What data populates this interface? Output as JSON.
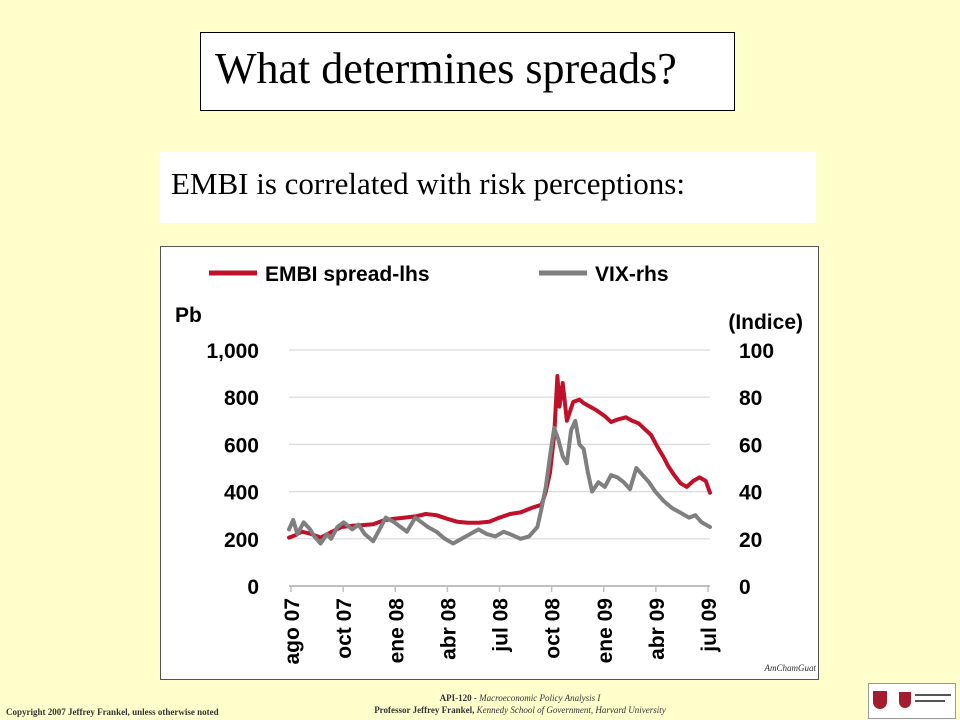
{
  "slide": {
    "title": "What determines spreads?",
    "subtitle": "EMBI is correlated with risk perceptions:",
    "footer_left": "Copyright 2007 Jeffrey Frankel, unless otherwise noted",
    "footer_line1": "API-120 - ",
    "footer_line1_italic": "Macroeconomic Policy Analysis I",
    "footer_line2": "Professor Jeffrey Frankel, ",
    "footer_line2_italic": "Kennedy School of Government, Harvard University",
    "logo_icon": "harvard-kennedy-school-logo"
  },
  "chart_data": {
    "type": "line",
    "legend": {
      "placement": "top",
      "entries": [
        "EMBI spread-lhs",
        "VIX-rhs"
      ]
    },
    "left_axis": {
      "unit": "Pb",
      "ticks": [
        "1,000",
        "800",
        "600",
        "400",
        "200",
        "0"
      ],
      "range": [
        0,
        1000
      ]
    },
    "right_axis": {
      "unit": "(Indice)",
      "ticks": [
        "100",
        "80",
        "60",
        "40",
        "20",
        "0"
      ],
      "range": [
        0,
        100
      ]
    },
    "x_ticks": [
      "ago 07",
      "oct 07",
      "ene 08",
      "abr 08",
      "jul 08",
      "oct 08",
      "ene 09",
      "abr 09",
      "jul 09"
    ],
    "grid": "horizontal",
    "source": "AmChamGuat",
    "colors": {
      "embi": "#c0102a",
      "vix": "#7f7f7f"
    },
    "series": [
      {
        "name": "EMBI spread-lhs",
        "axis": "left",
        "points": [
          [
            0,
            205
          ],
          [
            0.3,
            215
          ],
          [
            0.6,
            230
          ],
          [
            1,
            222
          ],
          [
            1.5,
            205
          ],
          [
            2,
            228
          ],
          [
            2.5,
            250
          ],
          [
            3,
            255
          ],
          [
            3.5,
            258
          ],
          [
            4,
            262
          ],
          [
            4.5,
            278
          ],
          [
            5,
            285
          ],
          [
            5.5,
            290
          ],
          [
            6,
            295
          ],
          [
            6.5,
            305
          ],
          [
            7,
            300
          ],
          [
            7.5,
            285
          ],
          [
            8,
            272
          ],
          [
            8.5,
            268
          ],
          [
            9,
            268
          ],
          [
            9.5,
            272
          ],
          [
            10,
            290
          ],
          [
            10.5,
            305
          ],
          [
            11,
            312
          ],
          [
            11.5,
            330
          ],
          [
            12,
            345
          ],
          [
            12.2,
            400
          ],
          [
            12.4,
            480
          ],
          [
            12.6,
            640
          ],
          [
            12.75,
            890
          ],
          [
            12.85,
            760
          ],
          [
            13,
            860
          ],
          [
            13.2,
            700
          ],
          [
            13.5,
            780
          ],
          [
            13.8,
            790
          ],
          [
            14,
            775
          ],
          [
            14.3,
            760
          ],
          [
            14.6,
            745
          ],
          [
            15,
            720
          ],
          [
            15.3,
            695
          ],
          [
            15.6,
            705
          ],
          [
            16,
            715
          ],
          [
            16.3,
            700
          ],
          [
            16.6,
            690
          ],
          [
            16.9,
            665
          ],
          [
            17.2,
            640
          ],
          [
            17.5,
            590
          ],
          [
            17.8,
            545
          ],
          [
            18,
            510
          ],
          [
            18.3,
            470
          ],
          [
            18.6,
            435
          ],
          [
            18.9,
            420
          ],
          [
            19.2,
            445
          ],
          [
            19.5,
            460
          ],
          [
            19.8,
            445
          ],
          [
            20,
            395
          ]
        ]
      },
      {
        "name": "VIX-rhs",
        "axis": "right",
        "points": [
          [
            0,
            24
          ],
          [
            0.2,
            28
          ],
          [
            0.4,
            22
          ],
          [
            0.7,
            27
          ],
          [
            1,
            24
          ],
          [
            1.2,
            21
          ],
          [
            1.5,
            18
          ],
          [
            1.8,
            22
          ],
          [
            2,
            20
          ],
          [
            2.3,
            25
          ],
          [
            2.6,
            27
          ],
          [
            3,
            24
          ],
          [
            3.3,
            26
          ],
          [
            3.6,
            22
          ],
          [
            4,
            19
          ],
          [
            4.3,
            24
          ],
          [
            4.6,
            29
          ],
          [
            5,
            27
          ],
          [
            5.3,
            25
          ],
          [
            5.6,
            23
          ],
          [
            6,
            29
          ],
          [
            6.3,
            27
          ],
          [
            6.6,
            25
          ],
          [
            7,
            23
          ],
          [
            7.4,
            20
          ],
          [
            7.8,
            18
          ],
          [
            8.2,
            20
          ],
          [
            8.6,
            22
          ],
          [
            9,
            24
          ],
          [
            9.4,
            22
          ],
          [
            9.8,
            21
          ],
          [
            10.2,
            23
          ],
          [
            10.5,
            22
          ],
          [
            11,
            20
          ],
          [
            11.4,
            21
          ],
          [
            11.8,
            25
          ],
          [
            12,
            33
          ],
          [
            12.2,
            42
          ],
          [
            12.4,
            55
          ],
          [
            12.6,
            67
          ],
          [
            12.8,
            62
          ],
          [
            13,
            55
          ],
          [
            13.2,
            52
          ],
          [
            13.4,
            66
          ],
          [
            13.6,
            70
          ],
          [
            13.8,
            60
          ],
          [
            14,
            58
          ],
          [
            14.2,
            48
          ],
          [
            14.4,
            40
          ],
          [
            14.7,
            44
          ],
          [
            15,
            42
          ],
          [
            15.3,
            47
          ],
          [
            15.6,
            46
          ],
          [
            15.9,
            44
          ],
          [
            16.2,
            41
          ],
          [
            16.5,
            50
          ],
          [
            16.8,
            47
          ],
          [
            17.1,
            44
          ],
          [
            17.4,
            40
          ],
          [
            17.8,
            36
          ],
          [
            18.2,
            33
          ],
          [
            18.6,
            31
          ],
          [
            19,
            29
          ],
          [
            19.3,
            30
          ],
          [
            19.6,
            27
          ],
          [
            20,
            25
          ]
        ]
      }
    ]
  }
}
